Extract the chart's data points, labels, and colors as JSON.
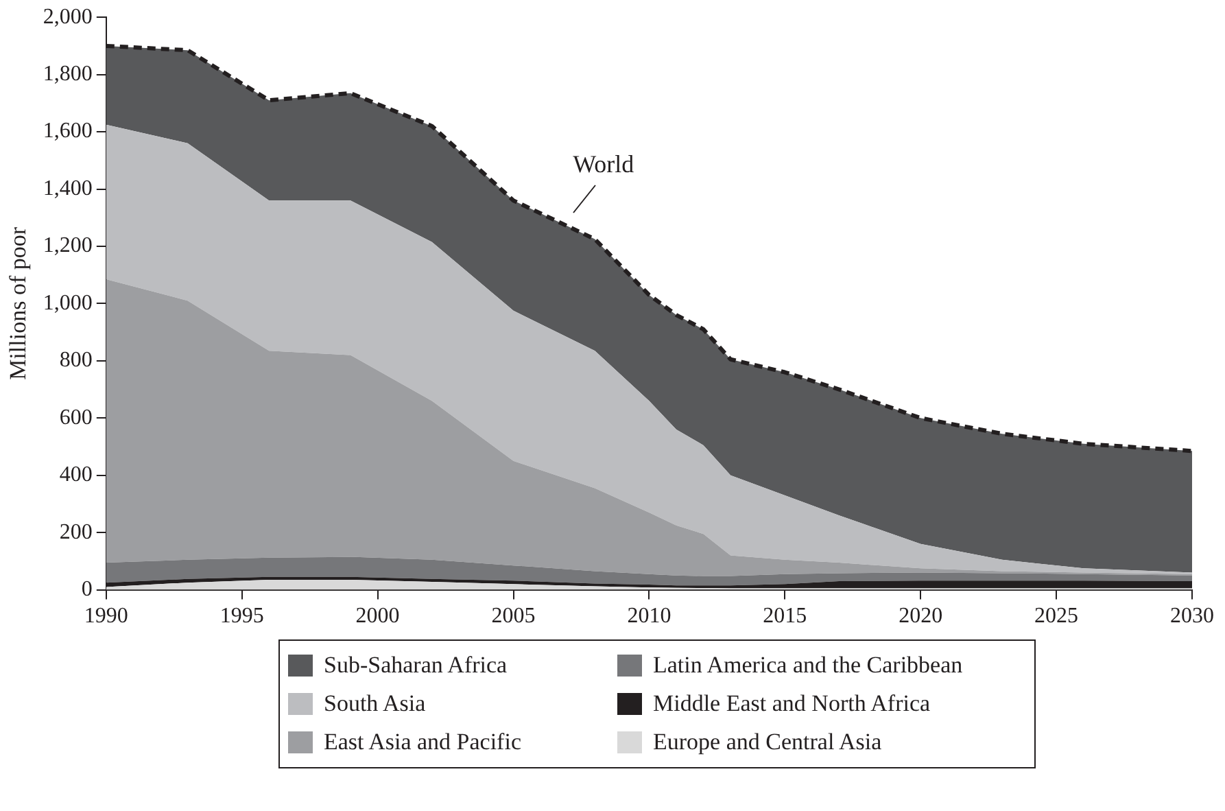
{
  "chart_data": {
    "type": "area",
    "stacked": true,
    "ylabel": "Millions of poor",
    "x": [
      1990,
      1993,
      1996,
      1999,
      2002,
      2005,
      2008,
      2010,
      2011,
      2012,
      2013,
      2015,
      2017,
      2020,
      2023,
      2026,
      2030
    ],
    "xlim": [
      1990,
      2030
    ],
    "xticks": [
      1990,
      1995,
      2000,
      2005,
      2010,
      2015,
      2020,
      2025,
      2030
    ],
    "ylim": [
      0,
      2000
    ],
    "yticks": [
      0,
      {
        "value": 200,
        "label": "200"
      },
      {
        "value": 400,
        "label": "400"
      },
      {
        "value": 600,
        "label": "600"
      },
      {
        "value": 800,
        "label": "800"
      },
      {
        "value": 1000,
        "label": "1,000"
      },
      {
        "value": 1200,
        "label": "1,200"
      },
      {
        "value": 1400,
        "label": "1,400"
      },
      {
        "value": 1600,
        "label": "1,600"
      },
      {
        "value": 1800,
        "label": "1,800"
      },
      {
        "value": 2000,
        "label": "2,000"
      }
    ],
    "grid": false,
    "legend": "bottom",
    "series": [
      {
        "name": "Europe and Central Asia",
        "color": "#d9d9d9",
        "values": [
          10,
          25,
          35,
          35,
          28,
          20,
          12,
          8,
          7,
          6,
          5,
          5,
          5,
          5,
          5,
          5,
          5
        ]
      },
      {
        "name": "Middle East and North Africa",
        "color": "#231f20",
        "values": [
          15,
          13,
          10,
          10,
          10,
          12,
          10,
          10,
          8,
          9,
          10,
          15,
          25,
          27,
          27,
          27,
          25
        ]
      },
      {
        "name": "Latin America and the Caribbean",
        "color": "#76777a",
        "values": [
          70,
          67,
          67,
          70,
          67,
          53,
          43,
          37,
          35,
          33,
          33,
          35,
          28,
          28,
          26,
          23,
          20
        ]
      },
      {
        "name": "East Asia and Pacific",
        "color": "#9d9ea1",
        "values": [
          990,
          905,
          723,
          705,
          555,
          365,
          290,
          215,
          175,
          147,
          72,
          50,
          37,
          15,
          7,
          5,
          5
        ]
      },
      {
        "name": "South Asia",
        "color": "#bcbdc0",
        "values": [
          540,
          550,
          525,
          540,
          555,
          525,
          480,
          390,
          335,
          310,
          280,
          225,
          165,
          85,
          40,
          15,
          5
        ]
      },
      {
        "name": "Sub-Saharan Africa",
        "color": "#58595b",
        "line_style": "dashed",
        "values": [
          275,
          325,
          350,
          375,
          405,
          385,
          390,
          370,
          400,
          405,
          405,
          430,
          440,
          440,
          440,
          435,
          425
        ]
      }
    ],
    "annotations": [
      {
        "text": "World",
        "x": 2007,
        "y": 1270
      }
    ]
  }
}
